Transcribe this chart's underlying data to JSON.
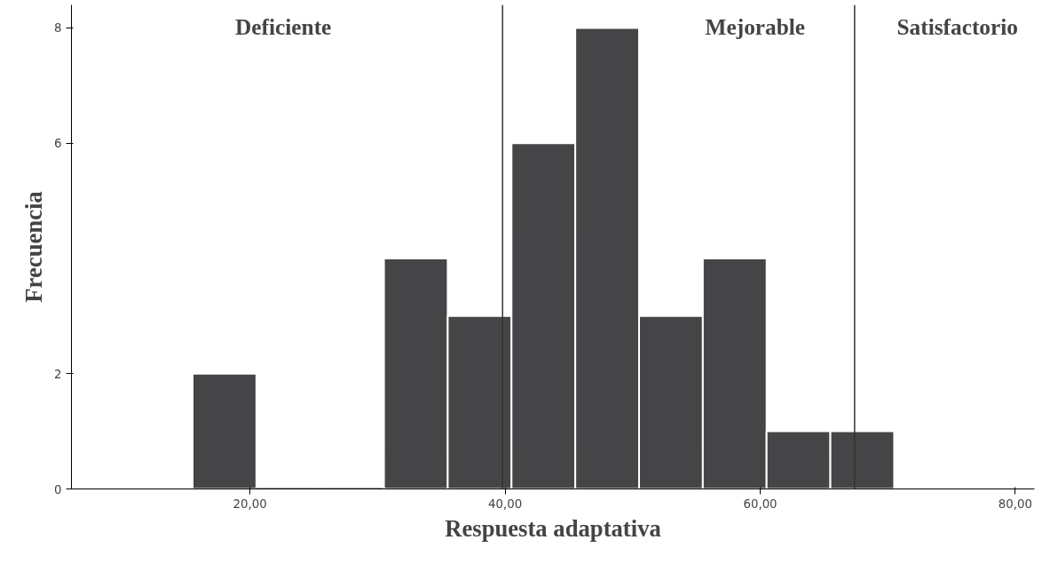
{
  "chart_data": {
    "type": "histogram",
    "xlabel": "Respuesta adaptativa",
    "ylabel": "Frecuencia",
    "bins": [
      15.5,
      20.5,
      25.5,
      30.5,
      35.5,
      40.5,
      45.5,
      50.5,
      55.5,
      60.5,
      65.5,
      70.5
    ],
    "values": [
      2,
      0,
      0,
      4,
      3,
      6,
      8,
      3,
      4,
      1,
      1
    ],
    "color": "#454547",
    "xlim": [
      6,
      81.5
    ],
    "ylim": [
      0,
      8.4
    ],
    "xticks": [
      {
        "value": 20,
        "label": "20,00"
      },
      {
        "value": 40,
        "label": "40,00"
      },
      {
        "value": 60,
        "label": "60,00"
      },
      {
        "value": 80,
        "label": "80,00"
      }
    ],
    "yticks": [
      0,
      2,
      6,
      8
    ],
    "ref_lines": [
      {
        "axis": "x",
        "value": 39.8,
        "color": "#333333"
      },
      {
        "axis": "x",
        "value": 67.4,
        "color": "#333333"
      }
    ],
    "annotations": [
      "Deficiente",
      "Mejorable",
      "Satisfactorio"
    ],
    "grid": false
  }
}
